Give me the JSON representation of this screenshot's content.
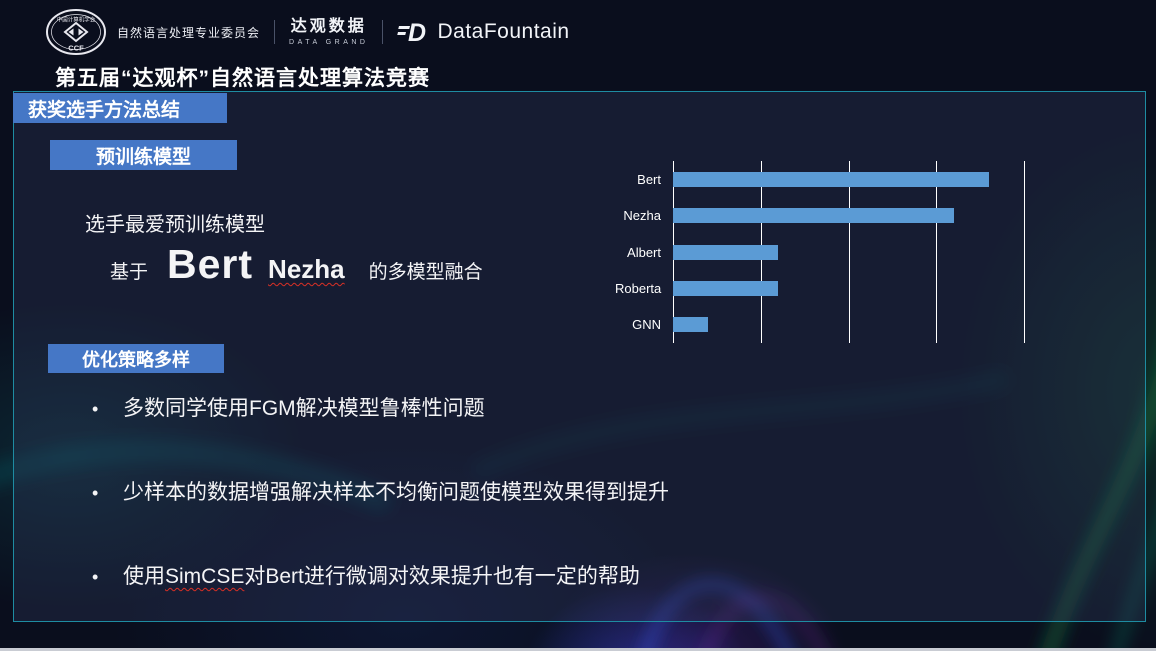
{
  "colors": {
    "badge_blue": "#4577c6",
    "bar_blue": "#5B9BD5",
    "frame_teal": "#1e8ca2",
    "wavy_red": "#d93025"
  },
  "header": {
    "ccf_seal": {
      "org": "中国计算机学会",
      "abbr": "CCF"
    },
    "committee": "自然语言处理专业委员会",
    "datagrand": {
      "cn": "达观数据",
      "en": "DATA GRAND"
    },
    "datafountain": "DataFountain"
  },
  "title": "第五届“达观杯”自然语言处理算法竞赛",
  "section_badge": "获奖选手方法总结",
  "pretrain": {
    "badge": "预训练模型",
    "line1": "选手最爱预训练模型",
    "fusion": {
      "prefix": "基于",
      "big": "Bert",
      "mid": "Nezha",
      "suffix": "的多模型融合"
    }
  },
  "chart_data": {
    "type": "bar",
    "orientation": "horizontal",
    "title": "",
    "xlabel": "",
    "ylabel": "",
    "categories": [
      "Bert",
      "Nezha",
      "Albert",
      "Roberta",
      "GNN"
    ],
    "values": [
      18,
      16,
      6,
      6,
      2
    ],
    "xlim": [
      0,
      20
    ],
    "gridline_step": 5,
    "grid": true,
    "legend": false,
    "bar_color": "#5B9BD5",
    "grid_color": "#ffffff"
  },
  "optimization": {
    "badge": "优化策略多样",
    "bullets": [
      {
        "segments": [
          {
            "text": "多数同学使用FGM解决模型鲁棒性问题",
            "wavy": false
          }
        ]
      },
      {
        "segments": [
          {
            "text": "少样本的数据增强解决样本不均衡问题使模型效果得到提升",
            "wavy": false
          }
        ]
      },
      {
        "segments": [
          {
            "text": "使用",
            "wavy": false
          },
          {
            "text": "SimCSE",
            "wavy": true
          },
          {
            "text": "对Bert进行微调对效果提升也有一定的帮助",
            "wavy": false
          }
        ]
      }
    ]
  }
}
